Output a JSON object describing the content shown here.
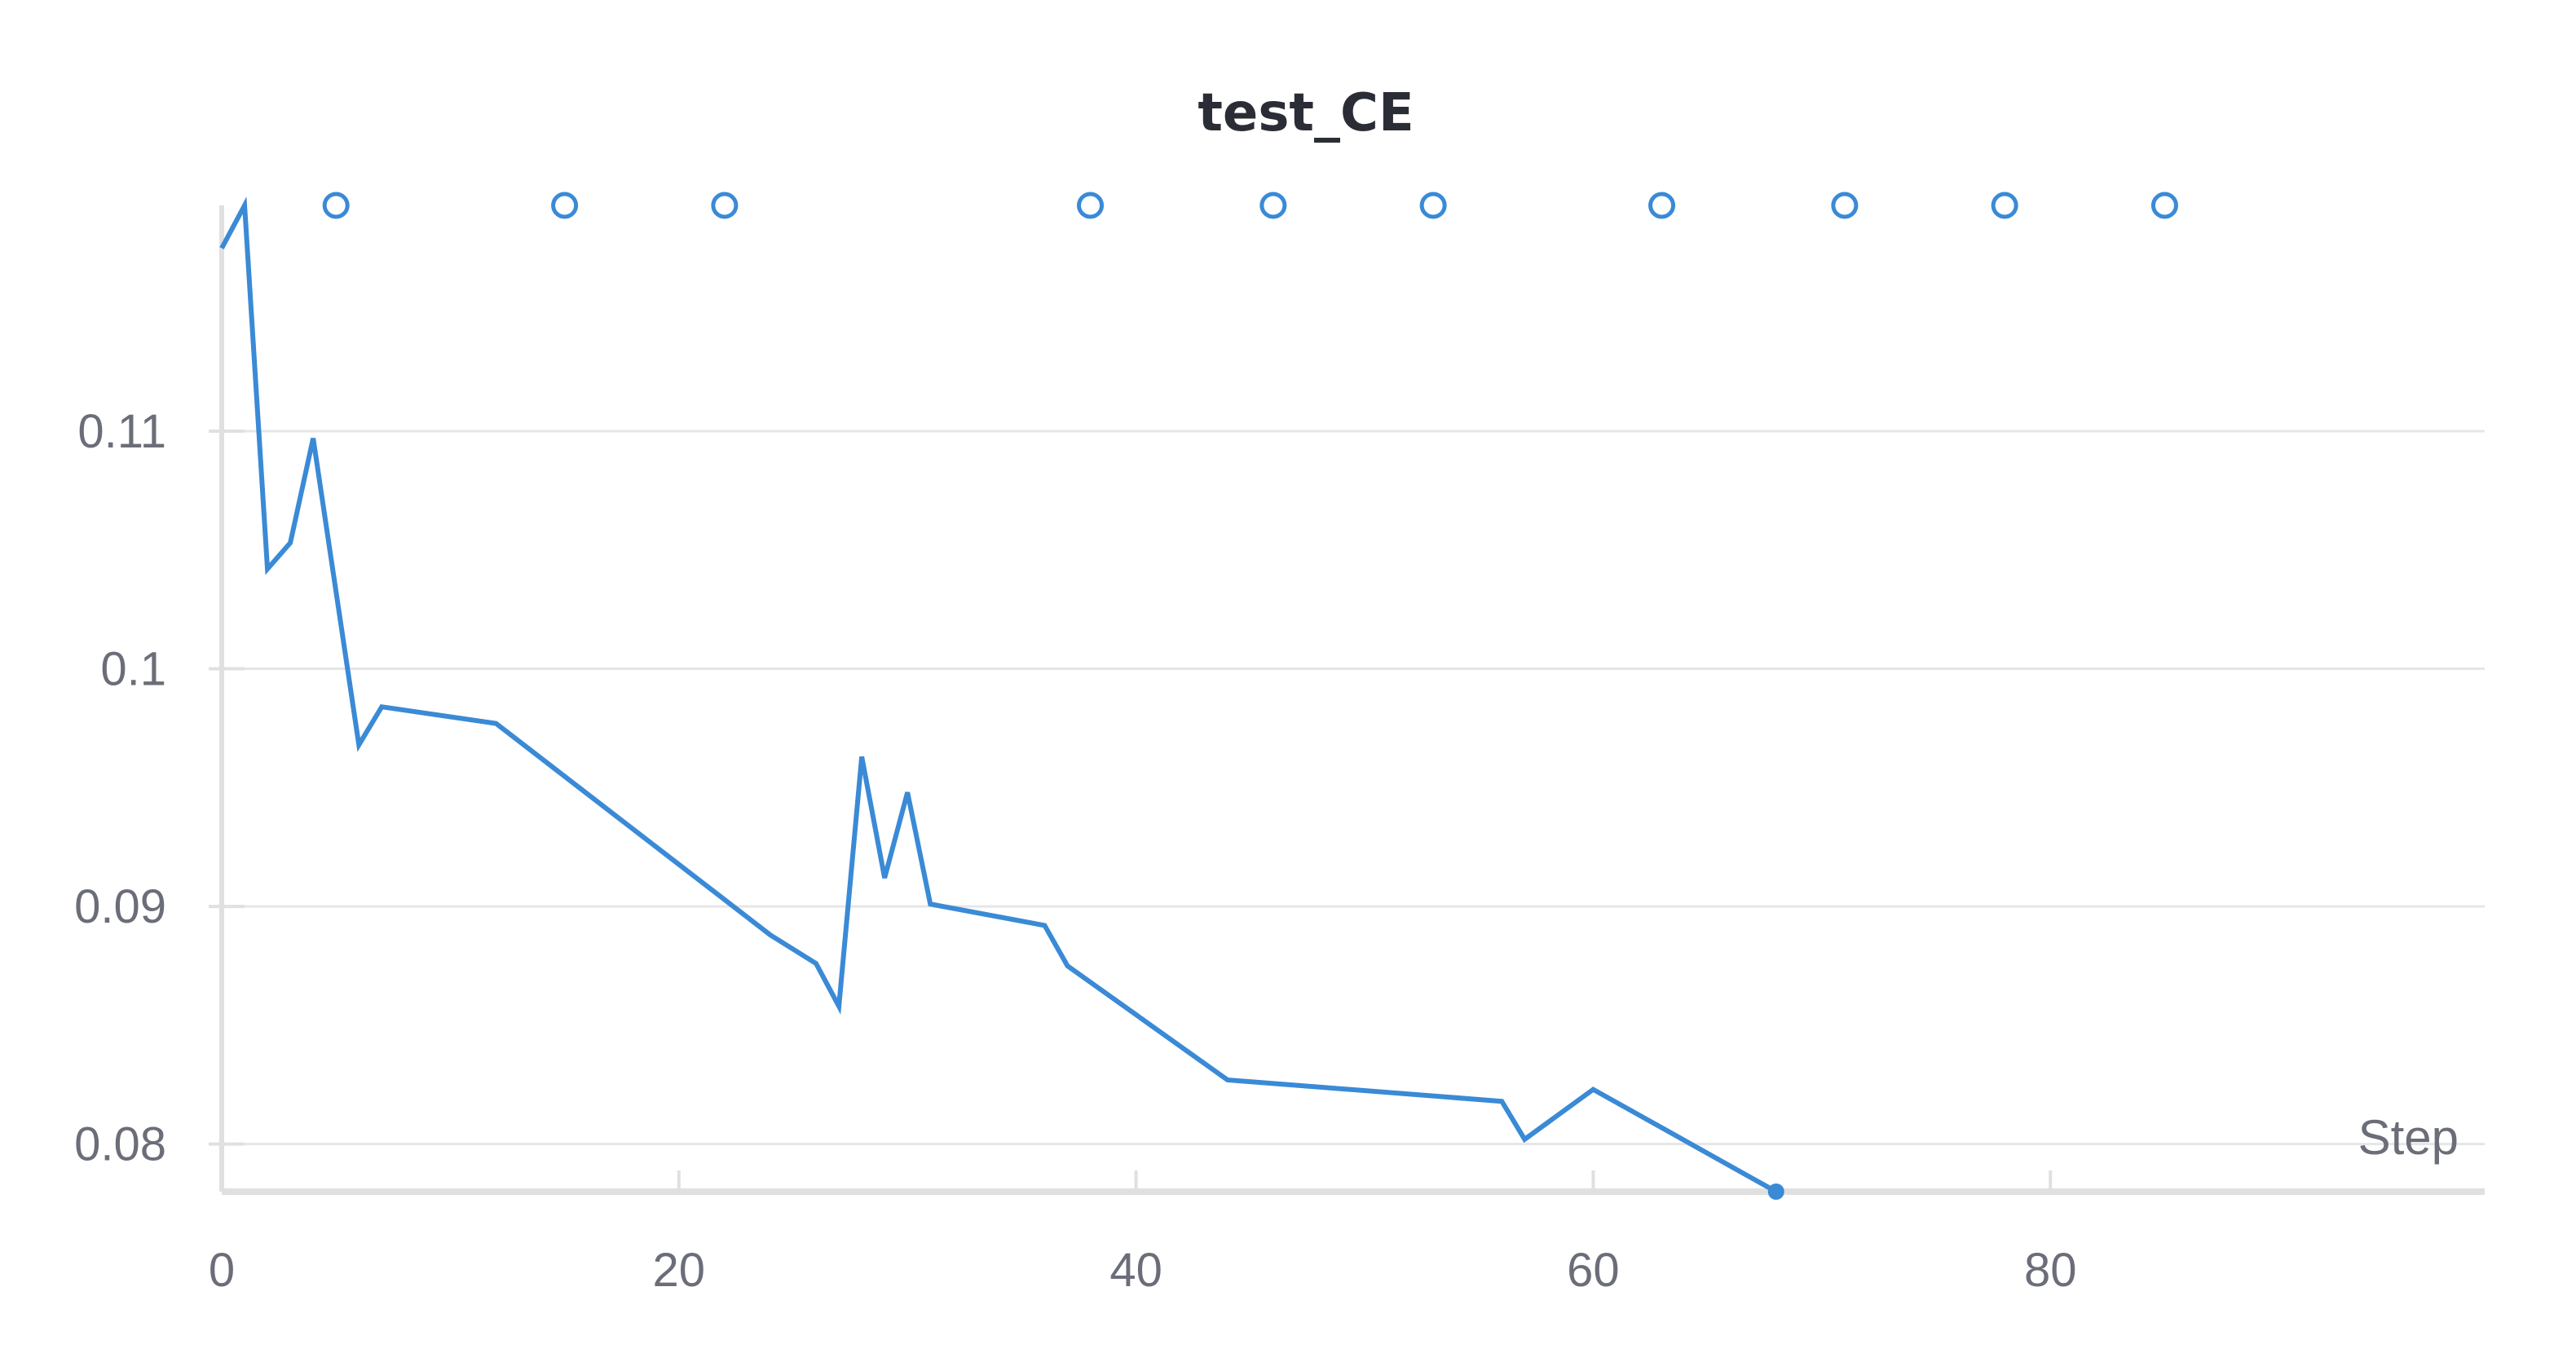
{
  "chart_data": {
    "type": "line",
    "title": "test_CE",
    "xlabel": "Step",
    "ylabel": "",
    "xlim": [
      0,
      99
    ],
    "ylim": [
      0.078,
      0.1195
    ],
    "xticks": [
      0,
      20,
      40,
      60,
      80
    ],
    "xtick_labels": [
      "0",
      "20",
      "40",
      "60",
      "80"
    ],
    "yticks": [
      0.08,
      0.09,
      0.1,
      0.11
    ],
    "ytick_labels": [
      "0.08",
      "0.09",
      "0.1",
      "0.11"
    ],
    "grid": true,
    "colors": {
      "line": "#3a8ad6",
      "grid": "#e6e6e6",
      "axis": "#e0e0e0",
      "text": "#6b6e78",
      "title": "#2b2d36"
    },
    "series": [
      {
        "x": [
          0,
          1,
          2,
          3,
          4,
          6,
          7,
          12,
          24,
          26,
          27,
          28,
          29,
          30,
          31,
          36,
          37,
          44,
          56,
          57,
          60,
          68
        ],
        "values": [
          0.1177,
          0.1195,
          0.1042,
          0.1053,
          0.1097,
          0.0968,
          0.0984,
          0.0977,
          0.0888,
          0.0876,
          0.0858,
          0.0963,
          0.0912,
          0.0948,
          0.0901,
          0.0892,
          0.0875,
          0.0827,
          0.0818,
          0.0802,
          0.0823,
          0.078
        ]
      }
    ],
    "out_of_range_markers": {
      "position": "top",
      "x": [
        5,
        15,
        22,
        38,
        46,
        53,
        63,
        71,
        78,
        85
      ]
    }
  }
}
